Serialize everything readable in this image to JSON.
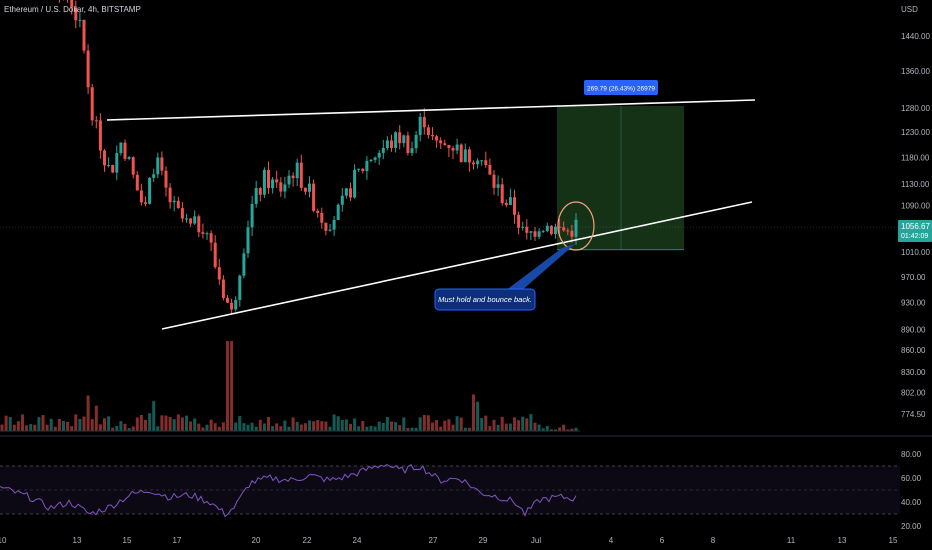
{
  "header": {
    "ticker_line": "Ethereum / U.S. Dollar, 4h, BITSTAMP",
    "currency": "USD"
  },
  "price_badge": {
    "price": "1056.67",
    "countdown": "01:42:09"
  },
  "measure_label": "269.79 (26.43%) 26979",
  "annotation": "Must hold and bounce back.",
  "colors": {
    "up": "#26a69a",
    "down": "#ef5350",
    "bg": "#000000",
    "target_zone": "#1e4620",
    "label_blue": "#2962ff",
    "circle": "#f5a37a"
  },
  "chart_data": [
    {
      "type": "candlestick",
      "title": "Ethereum / U.S. Dollar, 4h, BITSTAMP",
      "y_axis": {
        "ticks": [
          774.5,
          802.0,
          830.0,
          860.0,
          890.0,
          930.0,
          970.0,
          1010.0,
          1050.0,
          1090.0,
          1130.0,
          1180.0,
          1230.0,
          1280.0,
          1360.0,
          1440.0
        ],
        "tick_labels": [
          "774.50",
          "802.00",
          "830.00",
          "860.00",
          "890.00",
          "930.00",
          "970.00",
          "1010.00",
          "1050.00",
          "1090.00",
          "1130.00",
          "1180.00",
          "1230.00",
          "1280.00",
          "1360.00",
          "1440.00"
        ],
        "scale": "log",
        "range": [
          760,
          1560
        ],
        "currency": "USD"
      },
      "x_axis": {
        "tick_labels": [
          "10",
          "13",
          "15",
          "17",
          "20",
          "22",
          "24",
          "27",
          "29",
          "Jul",
          "4",
          "6",
          "8",
          "11",
          "13",
          "15"
        ]
      },
      "last_price": 1056.67,
      "trendlines": [
        {
          "name": "upper",
          "points": [
            [
              "Jun 14",
              1254
            ],
            [
              "Jul 9",
              1298
            ]
          ]
        },
        {
          "name": "lower",
          "points": [
            [
              "Jun 16",
              890
            ],
            [
              "Jul 9",
              1097
            ]
          ]
        }
      ],
      "target_zone": {
        "from": "Jul 2",
        "to": "Jul 6",
        "low": 1014,
        "high": 1284,
        "change": "269.79 (26.43%) 26979"
      },
      "volume": "histogram below price, colored by candle direction",
      "grid": false
    },
    {
      "type": "line",
      "name": "RSI",
      "y_axis": {
        "ticks": [
          20,
          40,
          60,
          80
        ],
        "tick_labels": [
          "20.00",
          "40.00",
          "60.00",
          "80.00"
        ],
        "range": [
          18,
          86
        ]
      },
      "bands": [
        30,
        50,
        70
      ],
      "last_value": 43
    }
  ]
}
